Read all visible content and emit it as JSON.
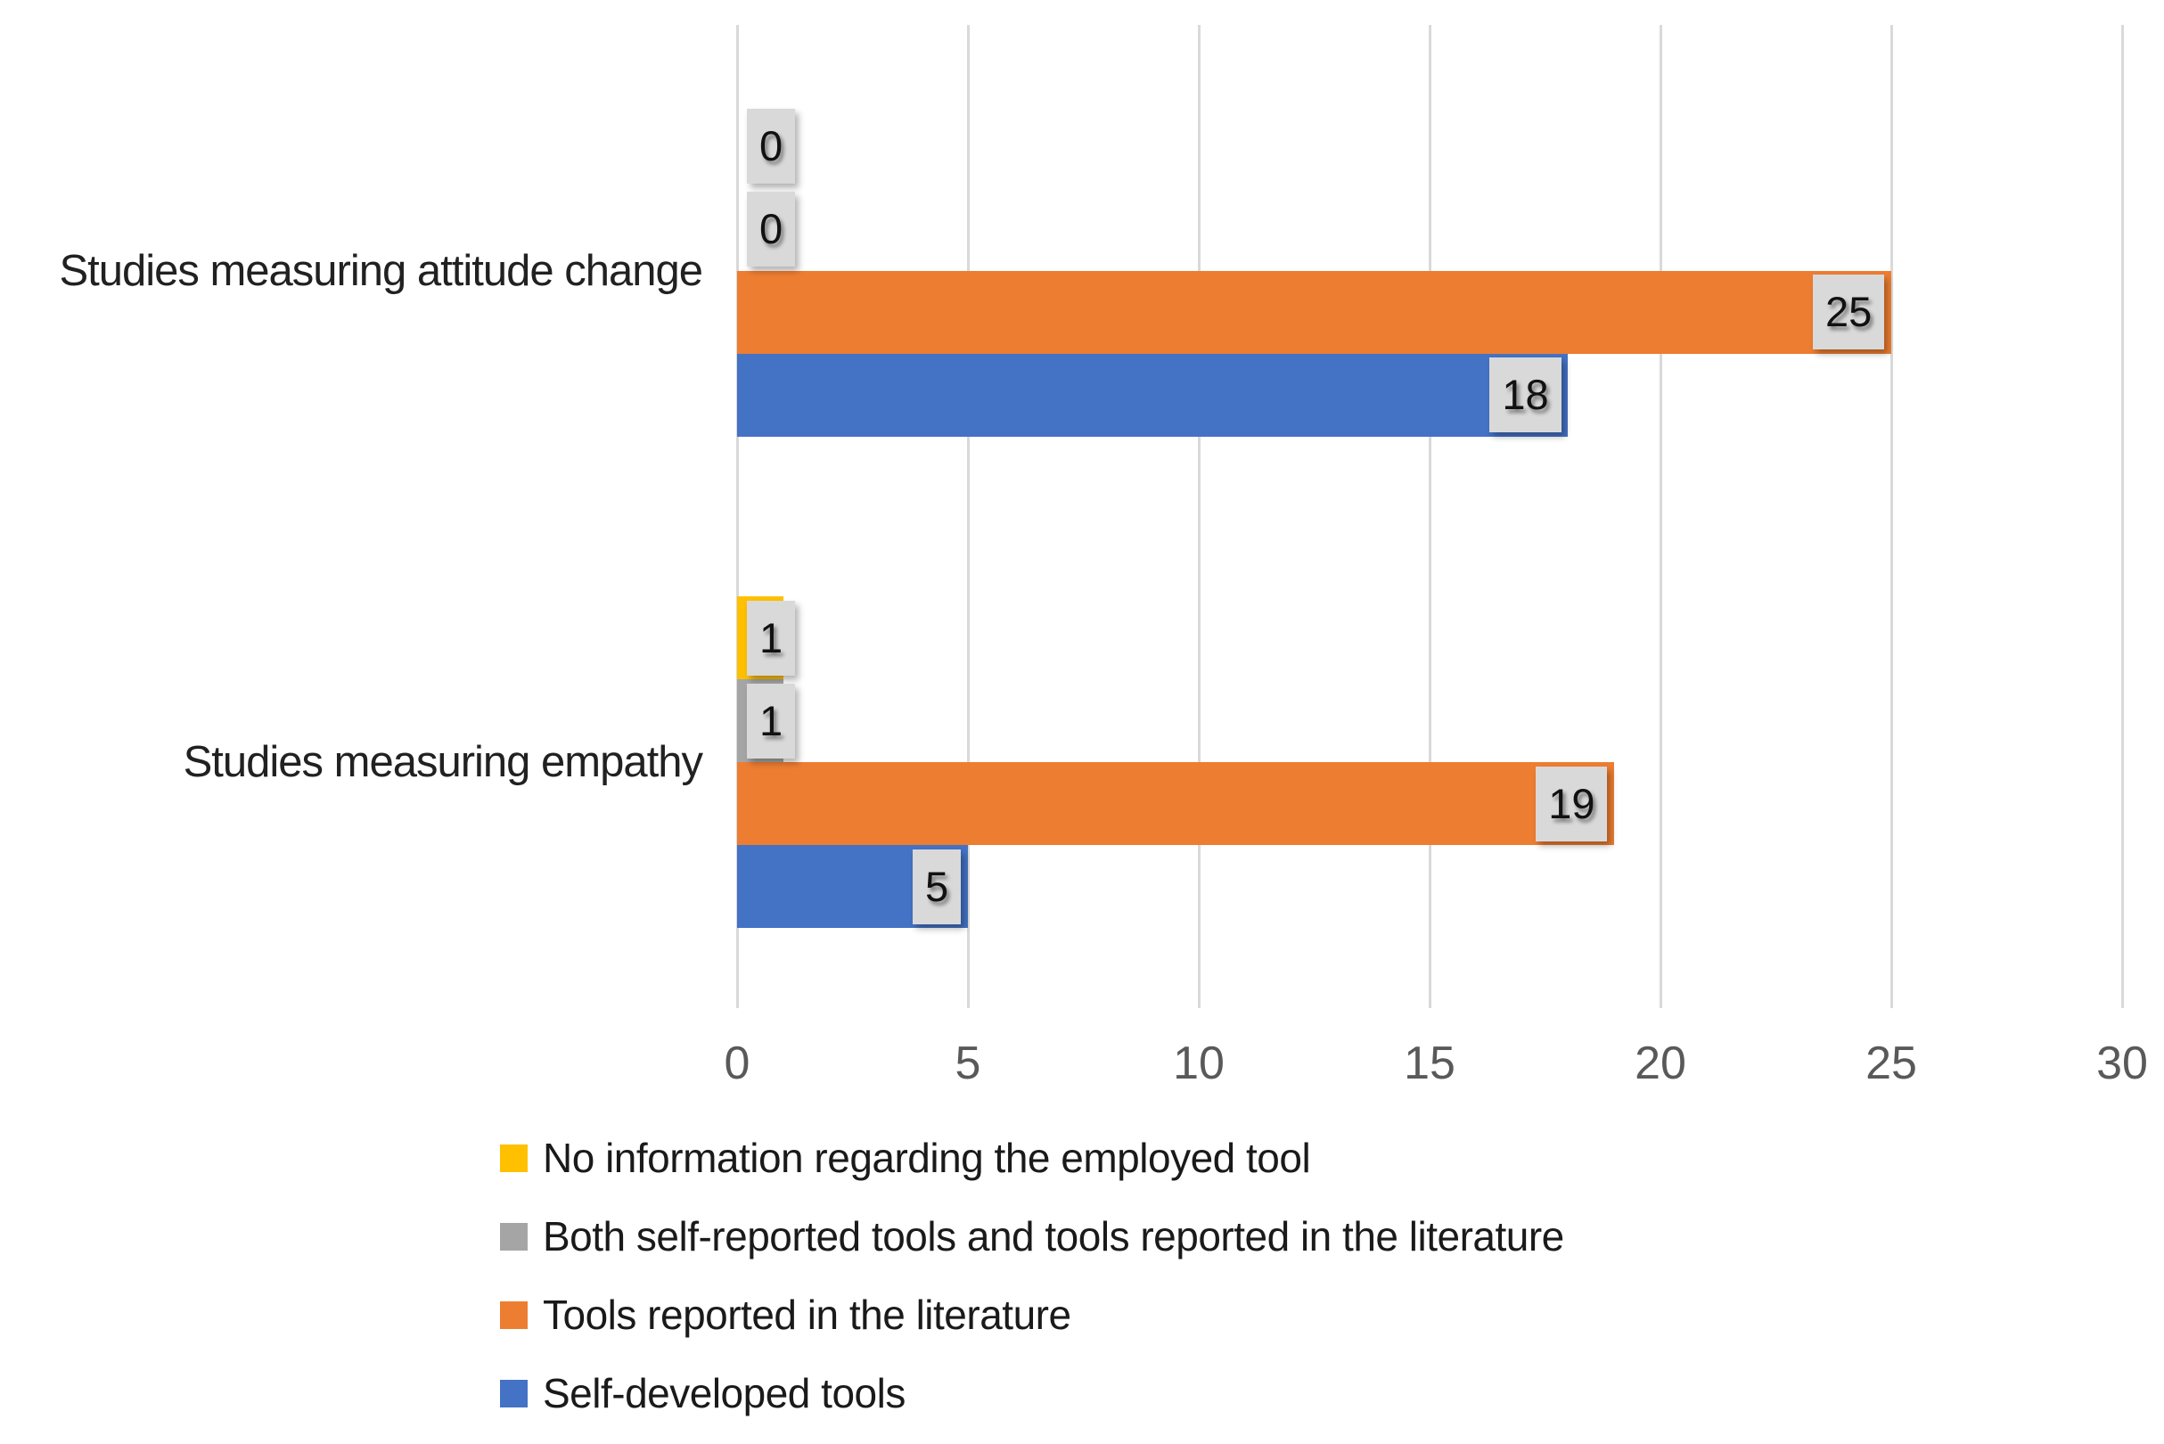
{
  "chart_data": {
    "type": "bar",
    "orientation": "horizontal",
    "title": "",
    "xlabel": "",
    "ylabel": "",
    "categories": [
      "Studies measuring attitude change",
      "Studies measuring empathy"
    ],
    "series": [
      {
        "name": "No information regarding the employed tool",
        "color": "#FFC000",
        "values": [
          0,
          1
        ]
      },
      {
        "name": "Both self-reported tools and tools reported in the literature",
        "color": "#A5A5A5",
        "values": [
          0,
          1
        ]
      },
      {
        "name": "Tools reported in the literature",
        "color": "#ED7D31",
        "values": [
          25,
          19
        ]
      },
      {
        "name": "Self-developed tools",
        "color": "#4472C4",
        "values": [
          18,
          5
        ]
      }
    ],
    "x_axis": {
      "min": 0,
      "max": 30,
      "tick_interval": 5,
      "ticks": [
        "0",
        "5",
        "10",
        "15",
        "20",
        "25",
        "30"
      ]
    },
    "grid": true,
    "data_labels": true,
    "legend_position": "bottom-left"
  },
  "colors": {
    "background": "#FFFFFF",
    "gridline": "#D9D9D9",
    "tick_text": "#595959",
    "category_text": "#212121",
    "legend_text": "#1A1A1A",
    "data_label_fill": "#D9D9D9",
    "data_label_text": "#111111"
  }
}
